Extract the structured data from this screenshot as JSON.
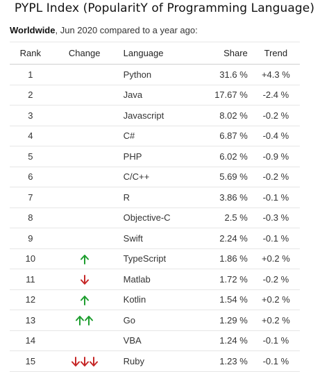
{
  "title": "PYPL Index (PopularitY of Programming Language)",
  "subtitle": {
    "region": "Worldwide",
    "text": ", Jun 2020 compared to a year ago:"
  },
  "colors": {
    "up": "#1e9e2f",
    "down": "#c62828"
  },
  "table": {
    "headers": {
      "rank": "Rank",
      "change": "Change",
      "language": "Language",
      "share": "Share",
      "trend": "Trend"
    },
    "rows": [
      {
        "rank": "1",
        "change": "",
        "language": "Python",
        "share": "31.6 %",
        "trend": "+4.3 %"
      },
      {
        "rank": "2",
        "change": "",
        "language": "Java",
        "share": "17.67 %",
        "trend": "-2.4 %"
      },
      {
        "rank": "3",
        "change": "",
        "language": "Javascript",
        "share": "8.02 %",
        "trend": "-0.2 %"
      },
      {
        "rank": "4",
        "change": "",
        "language": "C#",
        "share": "6.87 %",
        "trend": "-0.4 %"
      },
      {
        "rank": "5",
        "change": "",
        "language": "PHP",
        "share": "6.02 %",
        "trend": "-0.9 %"
      },
      {
        "rank": "6",
        "change": "",
        "language": "C/C++",
        "share": "5.69 %",
        "trend": "-0.2 %"
      },
      {
        "rank": "7",
        "change": "",
        "language": "R",
        "share": "3.86 %",
        "trend": "-0.1 %"
      },
      {
        "rank": "8",
        "change": "",
        "language": "Objective-C",
        "share": "2.5 %",
        "trend": "-0.3 %"
      },
      {
        "rank": "9",
        "change": "",
        "language": "Swift",
        "share": "2.24 %",
        "trend": "-0.1 %"
      },
      {
        "rank": "10",
        "change": "up-1",
        "language": "TypeScript",
        "share": "1.86 %",
        "trend": "+0.2 %"
      },
      {
        "rank": "11",
        "change": "down-1",
        "language": "Matlab",
        "share": "1.72 %",
        "trend": "-0.2 %"
      },
      {
        "rank": "12",
        "change": "up-1",
        "language": "Kotlin",
        "share": "1.54 %",
        "trend": "+0.2 %"
      },
      {
        "rank": "13",
        "change": "up-2",
        "language": "Go",
        "share": "1.29 %",
        "trend": "+0.2 %"
      },
      {
        "rank": "14",
        "change": "",
        "language": "VBA",
        "share": "1.24 %",
        "trend": "-0.1 %"
      },
      {
        "rank": "15",
        "change": "down-3",
        "language": "Ruby",
        "share": "1.23 %",
        "trend": "-0.1 %"
      }
    ]
  }
}
